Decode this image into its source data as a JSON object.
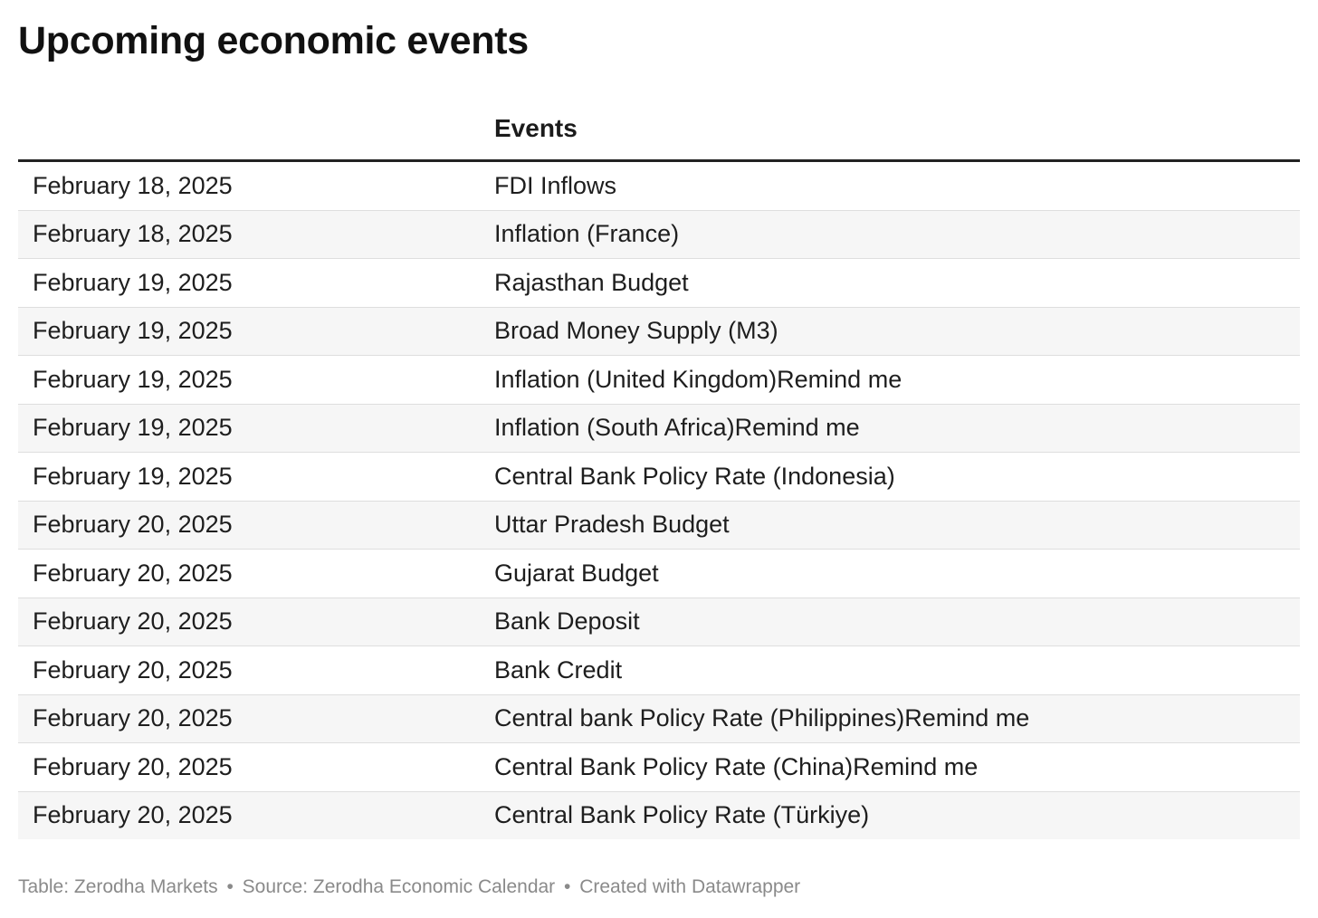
{
  "title": "Upcoming economic events",
  "chart_data": {
    "type": "table",
    "title": "Upcoming economic events",
    "columns": [
      "",
      "Events"
    ],
    "rows": [
      {
        "date": "February 18, 2025",
        "event": "FDI Inflows"
      },
      {
        "date": "February 18, 2025",
        "event": "Inflation (France)"
      },
      {
        "date": "February 19, 2025",
        "event": "Rajasthan Budget"
      },
      {
        "date": "February 19, 2025",
        "event": "Broad Money Supply (M3)"
      },
      {
        "date": "February 19, 2025",
        "event": "Inflation (United Kingdom)Remind me"
      },
      {
        "date": "February 19, 2025",
        "event": "Inflation (South Africa)Remind me"
      },
      {
        "date": "February 19, 2025",
        "event": "Central Bank Policy Rate (Indonesia)"
      },
      {
        "date": "February 20, 2025",
        "event": "Uttar Pradesh Budget"
      },
      {
        "date": "February 20, 2025",
        "event": "Gujarat Budget"
      },
      {
        "date": "February 20, 2025",
        "event": "Bank Deposit"
      },
      {
        "date": "February 20, 2025",
        "event": "Bank Credit"
      },
      {
        "date": "February 20, 2025",
        "event": "Central bank Policy Rate (Philippines)Remind me"
      },
      {
        "date": "February 20, 2025",
        "event": "Central Bank Policy Rate (China)Remind me"
      },
      {
        "date": "February 20, 2025",
        "event": "Central Bank Policy Rate (Türkiye)"
      }
    ]
  },
  "footer": {
    "table_credit": "Table: Zerodha Markets",
    "separator": "•",
    "source": "Source: Zerodha Economic Calendar",
    "created_with": "Created with Datawrapper"
  }
}
